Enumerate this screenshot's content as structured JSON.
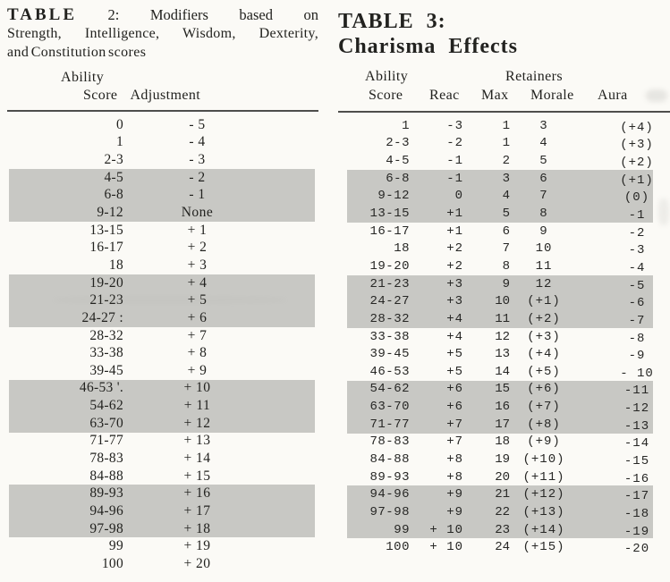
{
  "table2": {
    "title_bold": "TABLE",
    "title_rest": "2: Modifiers based on",
    "title_line2": "Strength, Intelligence, Wisdom, Dexterity,",
    "title_line3": "and Constitution scores",
    "header_group": "Ability",
    "col_score": "Score",
    "col_adjustment": "Adjustment",
    "rows": [
      {
        "score": "0",
        "adj": "- 5"
      },
      {
        "score": "1",
        "adj": "- 4"
      },
      {
        "score": "2-3",
        "adj": "- 3"
      },
      {
        "score": "4-5",
        "adj": "- 2"
      },
      {
        "score": "6-8",
        "adj": "- 1"
      },
      {
        "score": "9-12",
        "adj": "None"
      },
      {
        "score": "13-15",
        "adj": "+ 1"
      },
      {
        "score": "16-17",
        "adj": "+ 2"
      },
      {
        "score": "18",
        "adj": "+ 3"
      },
      {
        "score": "19-20",
        "adj": "+ 4"
      },
      {
        "score": "21-23",
        "adj": "+ 5"
      },
      {
        "score": "24-27 :",
        "adj": "+ 6"
      },
      {
        "score": "28-32",
        "adj": "+ 7"
      },
      {
        "score": "33-38",
        "adj": "+ 8"
      },
      {
        "score": "39-45",
        "adj": "+ 9"
      },
      {
        "score": "46-53 '.",
        "adj": "+ 10"
      },
      {
        "score": "54-62",
        "adj": "+ 11"
      },
      {
        "score": "63-70",
        "adj": "+ 12"
      },
      {
        "score": "71-77",
        "adj": "+ 13"
      },
      {
        "score": "78-83",
        "adj": "+ 14"
      },
      {
        "score": "84-88",
        "adj": "+ 15"
      },
      {
        "score": "89-93",
        "adj": "+ 16"
      },
      {
        "score": "94-96",
        "adj": "+ 17"
      },
      {
        "score": "97-98",
        "adj": "+ 18"
      },
      {
        "score": "99",
        "adj": "+ 19"
      },
      {
        "score": "100",
        "adj": "+ 20"
      }
    ]
  },
  "table3": {
    "title_line1": "TABLE 3:",
    "title_line2": "Charisma Effects",
    "header_ability": "Ability",
    "header_retainers": "Retainers",
    "col_score": "Score",
    "col_reac": "Reac",
    "col_max": "Max",
    "col_morale": "Morale",
    "col_aura": "Aura",
    "rows": [
      {
        "score": "1",
        "reac": "-3",
        "max": "1",
        "morale": "3",
        "aura": "(+4)"
      },
      {
        "score": "2-3",
        "reac": "-2",
        "max": "1",
        "morale": "4",
        "aura": "(+3)"
      },
      {
        "score": "4-5",
        "reac": "-1",
        "max": "2",
        "morale": "5",
        "aura": "(+2)"
      },
      {
        "score": "6-8",
        "reac": "-1",
        "max": "3",
        "morale": "6",
        "aura": "(+1)"
      },
      {
        "score": "9-12",
        "reac": "0",
        "max": "4",
        "morale": "7",
        "aura": "(0)"
      },
      {
        "score": "13-15",
        "reac": "+1",
        "max": "5",
        "morale": "8",
        "aura": "-1"
      },
      {
        "score": "16-17",
        "reac": "+1",
        "max": "6",
        "morale": "9",
        "aura": "-2"
      },
      {
        "score": "18",
        "reac": "+2",
        "max": "7",
        "morale": "10",
        "aura": "-3"
      },
      {
        "score": "19-20",
        "reac": "+2",
        "max": "8",
        "morale": "11",
        "aura": "-4"
      },
      {
        "score": "21-23",
        "reac": "+3",
        "max": "9",
        "morale": "12",
        "aura": "-5"
      },
      {
        "score": "24-27",
        "reac": "+3",
        "max": "10",
        "morale": "(+1)",
        "aura": "-6"
      },
      {
        "score": "28-32",
        "reac": "+4",
        "max": "11",
        "morale": "(+2)",
        "aura": "-7"
      },
      {
        "score": "33-38",
        "reac": "+4",
        "max": "12",
        "morale": "(+3)",
        "aura": "-8"
      },
      {
        "score": "39-45",
        "reac": "+5",
        "max": "13",
        "morale": "(+4)",
        "aura": "-9"
      },
      {
        "score": "46-53",
        "reac": "+5",
        "max": "14",
        "morale": "(+5)",
        "aura": "- 10"
      },
      {
        "score": "54-62",
        "reac": "+6",
        "max": "15",
        "morale": "(+6)",
        "aura": "-11"
      },
      {
        "score": "63-70",
        "reac": "+6",
        "max": "16",
        "morale": "(+7)",
        "aura": "-12"
      },
      {
        "score": "71-77",
        "reac": "+7",
        "max": "17",
        "morale": "(+8)",
        "aura": "-13"
      },
      {
        "score": "78-83",
        "reac": "+7",
        "max": "18",
        "morale": "(+9)",
        "aura": "-14"
      },
      {
        "score": "84-88",
        "reac": "+8",
        "max": "19",
        "morale": "(+10)",
        "aura": "-15"
      },
      {
        "score": "89-93",
        "reac": "+8",
        "max": "20",
        "morale": "(+11)",
        "aura": "-16"
      },
      {
        "score": "94-96",
        "reac": "+9",
        "max": "21",
        "morale": "(+12)",
        "aura": "-17"
      },
      {
        "score": "97-98",
        "reac": "+9",
        "max": "22",
        "morale": "(+13)",
        "aura": "-18"
      },
      {
        "score": "99",
        "reac": "+ 10",
        "max": "23",
        "morale": "(+14)",
        "aura": "-19"
      },
      {
        "score": "100",
        "reac": "+ 10",
        "max": "24",
        "morale": "(+15)",
        "aura": "-20"
      }
    ]
  },
  "colors": {
    "row_shade": "#c8c8c4",
    "rule": "#4e4e4c",
    "paper": "#fbfaf6",
    "ink": "#22221f"
  }
}
